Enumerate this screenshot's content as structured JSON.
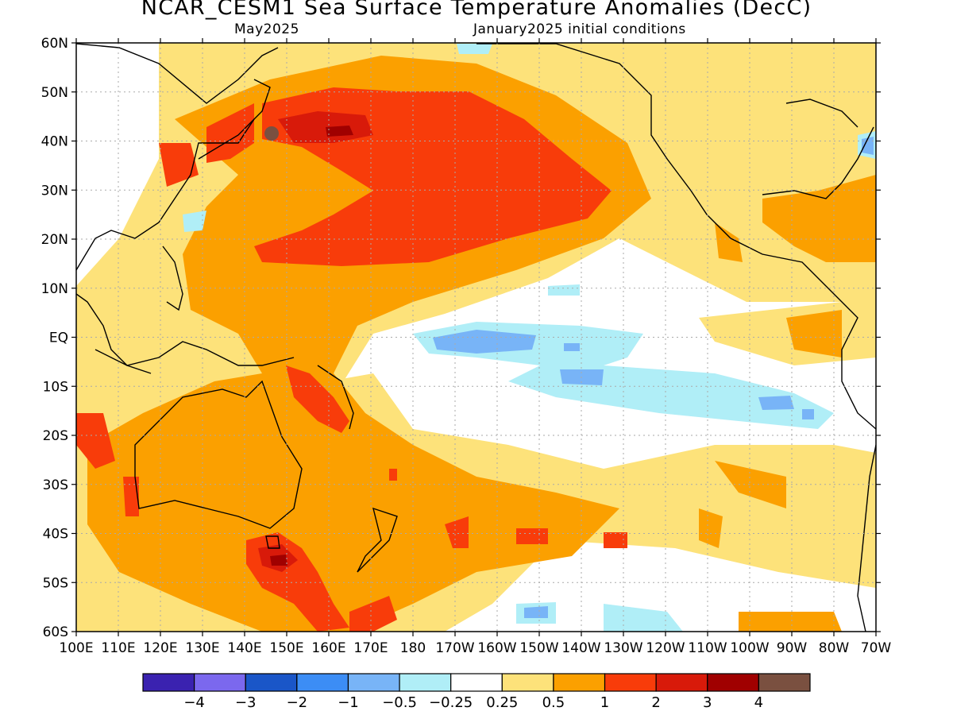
{
  "title": "NCAR_CESM1 Sea Surface Temperature Anomalies (DecC)",
  "subtitle_left": "May2025",
  "subtitle_right": "January2025 initial conditions",
  "lat_labels": [
    "60N",
    "50N",
    "40N",
    "30N",
    "20N",
    "10N",
    "EQ",
    "10S",
    "20S",
    "30S",
    "40S",
    "50S",
    "60S"
  ],
  "lon_labels": [
    "100E",
    "110E",
    "120E",
    "130E",
    "140E",
    "150E",
    "160E",
    "170E",
    "180",
    "170W",
    "160W",
    "150W",
    "140W",
    "130W",
    "120W",
    "110W",
    "100W",
    "90W",
    "80W",
    "70W"
  ],
  "colorbar": {
    "colors": [
      "#3a22b0",
      "#7b68ee",
      "#1a56c8",
      "#3c8df5",
      "#78b4f7",
      "#b0eef7",
      "#ffffff",
      "#fde27a",
      "#fba000",
      "#f83c0a",
      "#d81a0a",
      "#a00000",
      "#7a5040"
    ],
    "labels": [
      "−4",
      "−3",
      "−2",
      "−1",
      "−0.5",
      "−0.25",
      "0.25",
      "0.5",
      "1",
      "2",
      "3",
      "4"
    ]
  },
  "colors": {
    "ocean_neutral": "#ffffff",
    "coastline": "#000000",
    "grid": "#aaaaaa"
  }
}
